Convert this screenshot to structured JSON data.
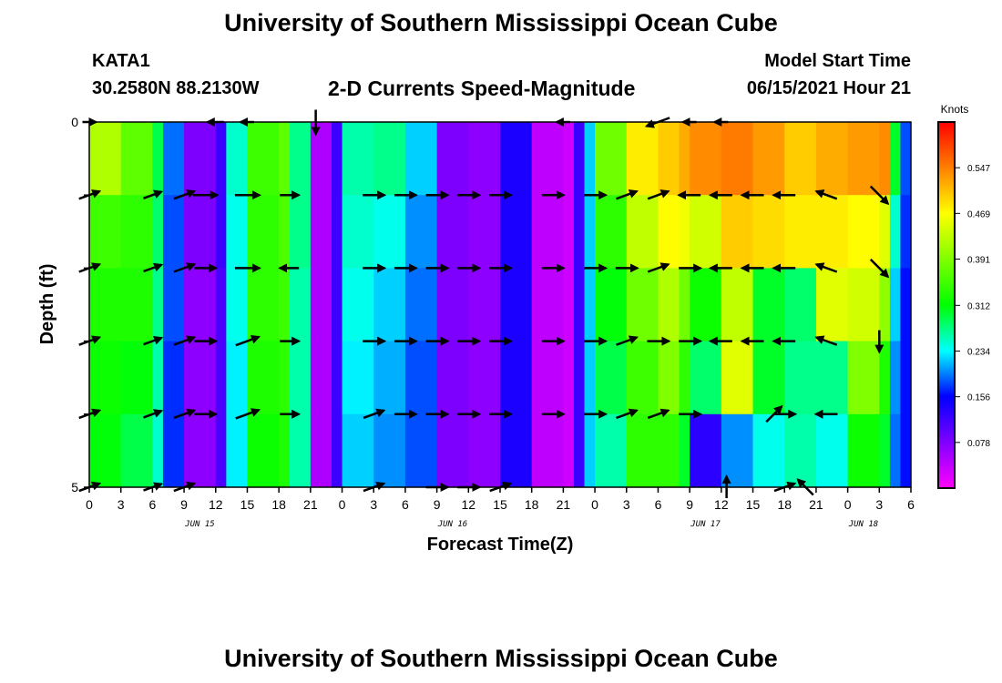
{
  "header": {
    "title": "University of Southern Mississippi Ocean Cube",
    "station": "KATA1",
    "coordinates": "30.2580N  88.2130W",
    "subtitle": "2-D Currents Speed-Magnitude",
    "model_start_label": "Model Start Time",
    "model_start_value": "06/15/2021 Hour 21"
  },
  "footer": {
    "title": "University of Southern Mississippi Ocean Cube"
  },
  "chart_data": {
    "type": "heatmap",
    "title": "2-D Currents Speed-Magnitude",
    "xlabel": "Forecast Time(Z)",
    "ylabel": "Depth (ft)",
    "x_tick_labels": [
      "0",
      "3",
      "6",
      "9",
      "12",
      "15",
      "18",
      "21",
      "0",
      "3",
      "6",
      "9",
      "12",
      "15",
      "18",
      "21",
      "0",
      "3",
      "6",
      "9",
      "12",
      "15",
      "18",
      "21",
      "0",
      "3",
      "6"
    ],
    "date_labels": [
      {
        "label": "JUN 15",
        "tick_index": 3.5
      },
      {
        "label": "JUN 16",
        "tick_index": 11.5
      },
      {
        "label": "JUN 17",
        "tick_index": 19.5
      },
      {
        "label": "JUN 18",
        "tick_index": 24.5
      }
    ],
    "y_tick_labels": [
      "0",
      "5"
    ],
    "ylim": [
      0,
      5
    ],
    "colorbar": {
      "unit": "Knots",
      "min": 0.0,
      "max": 0.625,
      "ticks": [
        "0.547",
        "0.469",
        "0.391",
        "0.312",
        "0.234",
        "0.156",
        "0.078"
      ],
      "tick_values": [
        0.547,
        0.469,
        0.391,
        0.312,
        0.234,
        0.156,
        0.078
      ],
      "colors": [
        "#ff00ff",
        "#8000ff",
        "#0000ff",
        "#00ffff",
        "#00ff00",
        "#ffff00",
        "#ff8000",
        "#ff0000"
      ]
    },
    "rows_layers": 5,
    "speed_profile_knots": [
      {
        "hour": 0,
        "values": [
          0.42,
          0.35,
          0.33,
          0.32,
          0.31
        ]
      },
      {
        "hour": 3,
        "values": [
          0.37,
          0.34,
          0.33,
          0.31,
          0.29
        ]
      },
      {
        "hour": 6,
        "values": [
          0.29,
          0.28,
          0.27,
          0.26,
          0.25
        ]
      },
      {
        "hour": 7,
        "values": [
          0.19,
          0.18,
          0.18,
          0.17,
          0.17
        ]
      },
      {
        "hour": 9,
        "values": [
          0.08,
          0.08,
          0.07,
          0.07,
          0.07
        ]
      },
      {
        "hour": 12,
        "values": [
          0.12,
          0.12,
          0.11,
          0.11,
          0.11
        ]
      },
      {
        "hour": 13,
        "values": [
          0.25,
          0.24,
          0.24,
          0.23,
          0.23
        ]
      },
      {
        "hour": 15,
        "values": [
          0.35,
          0.34,
          0.34,
          0.33,
          0.32
        ]
      },
      {
        "hour": 18,
        "values": [
          0.37,
          0.36,
          0.35,
          0.34,
          0.33
        ]
      },
      {
        "hour": 19,
        "values": [
          0.27,
          0.27,
          0.26,
          0.26,
          0.26
        ]
      },
      {
        "hour": 21,
        "values": [
          0.05,
          0.05,
          0.05,
          0.05,
          0.05
        ]
      },
      {
        "hour": 23,
        "values": [
          0.12,
          0.12,
          0.12,
          0.12,
          0.12
        ]
      },
      {
        "hour": 24,
        "values": [
          0.26,
          0.25,
          0.24,
          0.23,
          0.22
        ]
      },
      {
        "hour": 27,
        "values": [
          0.27,
          0.24,
          0.22,
          0.21,
          0.2
        ]
      },
      {
        "hour": 30,
        "values": [
          0.22,
          0.2,
          0.19,
          0.18,
          0.18
        ]
      },
      {
        "hour": 33,
        "values": [
          0.08,
          0.08,
          0.08,
          0.08,
          0.08
        ]
      },
      {
        "hour": 36,
        "values": [
          0.07,
          0.07,
          0.07,
          0.07,
          0.07
        ]
      },
      {
        "hour": 39,
        "values": [
          0.14,
          0.14,
          0.14,
          0.14,
          0.14
        ]
      },
      {
        "hour": 42,
        "values": [
          0.04,
          0.04,
          0.04,
          0.04,
          0.04
        ]
      },
      {
        "hour": 45,
        "values": [
          0.03,
          0.03,
          0.03,
          0.03,
          0.03
        ]
      },
      {
        "hour": 46,
        "values": [
          0.12,
          0.12,
          0.12,
          0.12,
          0.12
        ]
      },
      {
        "hour": 47,
        "values": [
          0.22,
          0.22,
          0.22,
          0.22,
          0.22
        ]
      },
      {
        "hour": 48,
        "values": [
          0.38,
          0.34,
          0.31,
          0.29,
          0.26
        ]
      },
      {
        "hour": 51,
        "values": [
          0.48,
          0.43,
          0.38,
          0.35,
          0.34
        ]
      },
      {
        "hour": 54,
        "values": [
          0.5,
          0.47,
          0.42,
          0.39,
          0.34
        ]
      },
      {
        "hour": 56,
        "values": [
          0.52,
          0.46,
          0.38,
          0.34,
          0.3
        ]
      },
      {
        "hour": 57,
        "values": [
          0.54,
          0.44,
          0.32,
          0.28,
          0.13
        ]
      },
      {
        "hour": 60,
        "values": [
          0.55,
          0.5,
          0.43,
          0.45,
          0.2
        ]
      },
      {
        "hour": 63,
        "values": [
          0.53,
          0.49,
          0.3,
          0.3,
          0.24
        ]
      },
      {
        "hour": 66,
        "values": [
          0.5,
          0.48,
          0.28,
          0.27,
          0.26
        ]
      },
      {
        "hour": 69,
        "values": [
          0.52,
          0.48,
          0.45,
          0.27,
          0.24
        ]
      },
      {
        "hour": 72,
        "values": [
          0.53,
          0.47,
          0.44,
          0.39,
          0.32
        ]
      },
      {
        "hour": 75,
        "values": [
          0.54,
          0.45,
          0.4,
          0.33,
          0.3
        ]
      },
      {
        "hour": 76,
        "values": [
          0.3,
          0.25,
          0.22,
          0.2,
          0.19
        ]
      },
      {
        "hour": 77,
        "values": [
          0.18,
          0.17,
          0.16,
          0.16,
          0.16
        ]
      }
    ],
    "vectors": [
      {
        "hour": 0,
        "depth": 0,
        "dir": "E",
        "len": 0.5
      },
      {
        "hour": 12,
        "depth": 0,
        "dir": "W",
        "len": 0.6
      },
      {
        "hour": 15,
        "depth": 0,
        "dir": "W",
        "len": 0.5
      },
      {
        "hour": 21.5,
        "depth": 0,
        "dir": "S",
        "len": 0.9
      },
      {
        "hour": 45,
        "depth": 0,
        "dir": "W",
        "len": 0.5
      },
      {
        "hour": 54,
        "depth": 0,
        "dir": "WSW",
        "len": 0.9
      },
      {
        "hour": 57,
        "depth": 0,
        "dir": "W",
        "len": 0.5
      },
      {
        "hour": 60,
        "depth": 0,
        "dir": "W",
        "len": 0.5
      },
      {
        "hour": 0,
        "depth": 1,
        "dir": "ENE",
        "len": 0.8
      },
      {
        "hour": 6,
        "depth": 1,
        "dir": "ENE",
        "len": 0.7
      },
      {
        "hour": 9,
        "depth": 1,
        "dir": "ENE",
        "len": 0.8
      },
      {
        "hour": 11,
        "depth": 1,
        "dir": "E",
        "len": 0.9
      },
      {
        "hour": 15,
        "depth": 1,
        "dir": "E",
        "len": 0.9
      },
      {
        "hour": 19,
        "depth": 1,
        "dir": "E",
        "len": 0.7
      },
      {
        "hour": 27,
        "depth": 1,
        "dir": "E",
        "len": 0.8
      },
      {
        "hour": 30,
        "depth": 1,
        "dir": "E",
        "len": 0.8
      },
      {
        "hour": 33,
        "depth": 1,
        "dir": "E",
        "len": 0.8
      },
      {
        "hour": 36,
        "depth": 1,
        "dir": "E",
        "len": 0.8
      },
      {
        "hour": 39,
        "depth": 1,
        "dir": "E",
        "len": 0.8
      },
      {
        "hour": 44,
        "depth": 1,
        "dir": "E",
        "len": 0.8
      },
      {
        "hour": 48,
        "depth": 1,
        "dir": "E",
        "len": 0.8
      },
      {
        "hour": 51,
        "depth": 1,
        "dir": "ENE",
        "len": 0.8
      },
      {
        "hour": 54,
        "depth": 1,
        "dir": "ENE",
        "len": 0.8
      },
      {
        "hour": 57,
        "depth": 1,
        "dir": "W",
        "len": 0.8
      },
      {
        "hour": 60,
        "depth": 1,
        "dir": "W",
        "len": 0.8
      },
      {
        "hour": 63,
        "depth": 1,
        "dir": "W",
        "len": 0.8
      },
      {
        "hour": 66,
        "depth": 1,
        "dir": "W",
        "len": 0.8
      },
      {
        "hour": 70,
        "depth": 1,
        "dir": "WNW",
        "len": 0.8
      },
      {
        "hour": 75,
        "depth": 1,
        "dir": "SE",
        "len": 0.9
      },
      {
        "hour": 0,
        "depth": 2,
        "dir": "ENE",
        "len": 0.8
      },
      {
        "hour": 6,
        "depth": 2,
        "dir": "ENE",
        "len": 0.7
      },
      {
        "hour": 9,
        "depth": 2,
        "dir": "ENE",
        "len": 0.8
      },
      {
        "hour": 11,
        "depth": 2,
        "dir": "E",
        "len": 0.8
      },
      {
        "hour": 15,
        "depth": 2,
        "dir": "E",
        "len": 0.9
      },
      {
        "hour": 19,
        "depth": 2,
        "dir": "W",
        "len": 0.7
      },
      {
        "hour": 27,
        "depth": 2,
        "dir": "E",
        "len": 0.8
      },
      {
        "hour": 30,
        "depth": 2,
        "dir": "E",
        "len": 0.8
      },
      {
        "hour": 33,
        "depth": 2,
        "dir": "E",
        "len": 0.8
      },
      {
        "hour": 36,
        "depth": 2,
        "dir": "E",
        "len": 0.8
      },
      {
        "hour": 39,
        "depth": 2,
        "dir": "E",
        "len": 0.8
      },
      {
        "hour": 44,
        "depth": 2,
        "dir": "E",
        "len": 0.8
      },
      {
        "hour": 48,
        "depth": 2,
        "dir": "E",
        "len": 0.8
      },
      {
        "hour": 51,
        "depth": 2,
        "dir": "E",
        "len": 0.8
      },
      {
        "hour": 54,
        "depth": 2,
        "dir": "ENE",
        "len": 0.8
      },
      {
        "hour": 57,
        "depth": 2,
        "dir": "E",
        "len": 0.8
      },
      {
        "hour": 60,
        "depth": 2,
        "dir": "W",
        "len": 0.8
      },
      {
        "hour": 63,
        "depth": 2,
        "dir": "W",
        "len": 0.8
      },
      {
        "hour": 66,
        "depth": 2,
        "dir": "W",
        "len": 0.8
      },
      {
        "hour": 70,
        "depth": 2,
        "dir": "WNW",
        "len": 0.8
      },
      {
        "hour": 75,
        "depth": 2,
        "dir": "SE",
        "len": 0.9
      },
      {
        "hour": 0,
        "depth": 3,
        "dir": "ENE",
        "len": 0.8
      },
      {
        "hour": 6,
        "depth": 3,
        "dir": "ENE",
        "len": 0.7
      },
      {
        "hour": 9,
        "depth": 3,
        "dir": "ENE",
        "len": 0.8
      },
      {
        "hour": 11,
        "depth": 3,
        "dir": "E",
        "len": 0.8
      },
      {
        "hour": 15,
        "depth": 3,
        "dir": "ENE",
        "len": 0.9
      },
      {
        "hour": 19,
        "depth": 3,
        "dir": "E",
        "len": 0.7
      },
      {
        "hour": 27,
        "depth": 3,
        "dir": "E",
        "len": 0.8
      },
      {
        "hour": 30,
        "depth": 3,
        "dir": "E",
        "len": 0.8
      },
      {
        "hour": 33,
        "depth": 3,
        "dir": "E",
        "len": 0.8
      },
      {
        "hour": 36,
        "depth": 3,
        "dir": "E",
        "len": 0.8
      },
      {
        "hour": 39,
        "depth": 3,
        "dir": "E",
        "len": 0.8
      },
      {
        "hour": 44,
        "depth": 3,
        "dir": "E",
        "len": 0.8
      },
      {
        "hour": 48,
        "depth": 3,
        "dir": "E",
        "len": 0.8
      },
      {
        "hour": 51,
        "depth": 3,
        "dir": "ENE",
        "len": 0.8
      },
      {
        "hour": 54,
        "depth": 3,
        "dir": "E",
        "len": 0.8
      },
      {
        "hour": 57,
        "depth": 3,
        "dir": "E",
        "len": 0.8
      },
      {
        "hour": 60,
        "depth": 3,
        "dir": "W",
        "len": 0.8
      },
      {
        "hour": 63,
        "depth": 3,
        "dir": "W",
        "len": 0.8
      },
      {
        "hour": 66,
        "depth": 3,
        "dir": "W",
        "len": 0.8
      },
      {
        "hour": 70,
        "depth": 3,
        "dir": "WNW",
        "len": 0.8
      },
      {
        "hour": 75,
        "depth": 3,
        "dir": "S",
        "len": 0.8
      },
      {
        "hour": 0,
        "depth": 4,
        "dir": "ENE",
        "len": 0.8
      },
      {
        "hour": 6,
        "depth": 4,
        "dir": "ENE",
        "len": 0.7
      },
      {
        "hour": 9,
        "depth": 4,
        "dir": "ENE",
        "len": 0.8
      },
      {
        "hour": 11,
        "depth": 4,
        "dir": "E",
        "len": 0.8
      },
      {
        "hour": 15,
        "depth": 4,
        "dir": "ENE",
        "len": 0.9
      },
      {
        "hour": 19,
        "depth": 4,
        "dir": "E",
        "len": 0.7
      },
      {
        "hour": 27,
        "depth": 4,
        "dir": "ENE",
        "len": 0.8
      },
      {
        "hour": 30,
        "depth": 4,
        "dir": "E",
        "len": 0.8
      },
      {
        "hour": 33,
        "depth": 4,
        "dir": "E",
        "len": 0.8
      },
      {
        "hour": 36,
        "depth": 4,
        "dir": "E",
        "len": 0.8
      },
      {
        "hour": 39,
        "depth": 4,
        "dir": "E",
        "len": 0.8
      },
      {
        "hour": 44,
        "depth": 4,
        "dir": "E",
        "len": 0.8
      },
      {
        "hour": 48,
        "depth": 4,
        "dir": "E",
        "len": 0.8
      },
      {
        "hour": 51,
        "depth": 4,
        "dir": "ENE",
        "len": 0.8
      },
      {
        "hour": 54,
        "depth": 4,
        "dir": "ENE",
        "len": 0.8
      },
      {
        "hour": 57,
        "depth": 4,
        "dir": "E",
        "len": 0.8
      },
      {
        "hour": 65,
        "depth": 4,
        "dir": "NE",
        "len": 0.8
      },
      {
        "hour": 66,
        "depth": 4,
        "dir": "E",
        "len": 0.8
      },
      {
        "hour": 70,
        "depth": 4,
        "dir": "W",
        "len": 0.8
      },
      {
        "hour": 0,
        "depth": 5,
        "dir": "ENE",
        "len": 0.8
      },
      {
        "hour": 6,
        "depth": 5,
        "dir": "ENE",
        "len": 0.7
      },
      {
        "hour": 9,
        "depth": 5,
        "dir": "ENE",
        "len": 0.8
      },
      {
        "hour": 27,
        "depth": 5,
        "dir": "ENE",
        "len": 0.8
      },
      {
        "hour": 33,
        "depth": 5,
        "dir": "E",
        "len": 0.8
      },
      {
        "hour": 36,
        "depth": 5,
        "dir": "E",
        "len": 0.8
      },
      {
        "hour": 39,
        "depth": 5,
        "dir": "ENE",
        "len": 0.8
      },
      {
        "hour": 60.5,
        "depth": 5,
        "dir": "N",
        "len": 0.8
      },
      {
        "hour": 66,
        "depth": 5,
        "dir": "ENE",
        "len": 0.8
      },
      {
        "hour": 68,
        "depth": 5,
        "dir": "NW",
        "len": 0.8
      }
    ]
  }
}
